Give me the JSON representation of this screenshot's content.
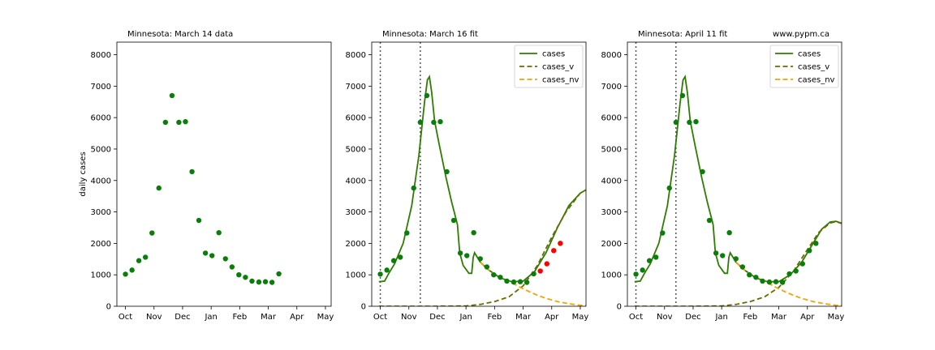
{
  "colors": {
    "cases": "#2e7d00",
    "cases_v": "#6b6b00",
    "cases_nv": "#f5a300",
    "data_point": "#0a7d0a",
    "new_point": "#ff0000",
    "vline": "#555555"
  },
  "chart_data": [
    {
      "type": "scatter",
      "title": "Minnesota:  March 14 data",
      "title_right": "",
      "ylabel": "daily cases",
      "ylim": [
        0,
        8400
      ],
      "xlim": [
        -0.3,
        7.2
      ],
      "yticks": [
        0,
        1000,
        2000,
        3000,
        4000,
        5000,
        6000,
        7000,
        8000
      ],
      "xtick_labels": [
        "Oct",
        "Nov",
        "Dec",
        "Jan",
        "Feb",
        "Mar",
        "Apr",
        "May"
      ],
      "vlines": [],
      "legend": [],
      "series": [],
      "points": {
        "x": [
          0.0,
          0.23,
          0.47,
          0.7,
          0.93,
          1.17,
          1.4,
          1.63,
          1.87,
          2.1,
          2.33,
          2.57,
          2.8,
          3.03,
          3.27,
          3.5,
          3.73,
          3.97,
          4.2,
          4.43,
          4.67,
          4.9,
          5.13,
          5.37
        ],
        "y": [
          1020,
          1150,
          1450,
          1560,
          2330,
          3760,
          5850,
          6700,
          5850,
          5870,
          4280,
          2730,
          1690,
          1610,
          2340,
          1510,
          1250,
          1000,
          920,
          800,
          770,
          780,
          760,
          1030
        ]
      },
      "new_points": {
        "x": [],
        "y": []
      }
    },
    {
      "type": "line",
      "title": "Minnesota:  March 16 fit",
      "title_right": "",
      "ylabel": "",
      "ylim": [
        0,
        8400
      ],
      "xlim": [
        -0.3,
        7.2
      ],
      "yticks": [
        0,
        1000,
        2000,
        3000,
        4000,
        5000,
        6000,
        7000,
        8000
      ],
      "xtick_labels": [
        "Oct",
        "Nov",
        "Dec",
        "Jan",
        "Feb",
        "Mar",
        "Apr",
        "May"
      ],
      "vlines": [
        0.0,
        1.4
      ],
      "legend": [
        "cases",
        "cases_v",
        "cases_nv"
      ],
      "series": [
        {
          "name": "cases",
          "style": "solid",
          "x": [
            -0.05,
            0.15,
            0.3,
            0.5,
            0.8,
            1.1,
            1.35,
            1.55,
            1.65,
            1.72,
            1.8,
            1.9,
            2.05,
            2.3,
            2.5,
            2.7,
            2.78,
            2.9,
            3.1,
            3.2,
            3.25,
            3.3,
            3.5,
            3.8,
            4.2,
            4.6,
            5.0,
            5.4,
            5.8,
            6.2,
            6.6,
            7.0,
            7.2
          ],
          "y": [
            780,
            800,
            1050,
            1350,
            2000,
            3200,
            4800,
            6500,
            7200,
            7300,
            6800,
            5900,
            5200,
            4100,
            3300,
            2600,
            1700,
            1300,
            1050,
            1050,
            1550,
            1700,
            1400,
            1150,
            900,
            780,
            800,
            1100,
            1700,
            2500,
            3200,
            3600,
            3700
          ]
        },
        {
          "name": "cases_v",
          "style": "dashed",
          "x": [
            -0.05,
            1.0,
            2.0,
            3.0,
            3.5,
            4.0,
            4.5,
            5.0,
            5.5,
            6.0,
            6.5,
            7.0,
            7.2
          ],
          "y": [
            0,
            0,
            0,
            10,
            60,
            150,
            300,
            650,
            1300,
            2200,
            3000,
            3600,
            3700
          ]
        },
        {
          "name": "cases_nv",
          "style": "dashed",
          "x": [
            3.5,
            3.8,
            4.0,
            4.3,
            4.6,
            4.9,
            5.2,
            5.5,
            5.8,
            6.2,
            6.6,
            7.0,
            7.2
          ],
          "y": [
            1400,
            1150,
            1000,
            880,
            750,
            600,
            470,
            350,
            250,
            150,
            80,
            30,
            20
          ]
        }
      ],
      "points": {
        "x": [
          0.0,
          0.23,
          0.47,
          0.7,
          0.93,
          1.17,
          1.4,
          1.63,
          1.87,
          2.1,
          2.33,
          2.57,
          2.8,
          3.03,
          3.27,
          3.5,
          3.73,
          3.97,
          4.2,
          4.43,
          4.67,
          4.9,
          5.13,
          5.37
        ],
        "y": [
          1020,
          1150,
          1450,
          1560,
          2330,
          3760,
          5850,
          6700,
          5850,
          5870,
          4280,
          2730,
          1690,
          1610,
          2340,
          1510,
          1250,
          1000,
          920,
          800,
          770,
          780,
          760,
          1030
        ]
      },
      "new_points": {
        "x": [
          5.6,
          5.83,
          6.07,
          6.3
        ],
        "y": [
          1120,
          1350,
          1770,
          2000
        ]
      }
    },
    {
      "type": "line",
      "title": "Minnesota:  April 11 fit",
      "title_right": "www.pypm.ca",
      "ylabel": "",
      "ylim": [
        0,
        8400
      ],
      "xlim": [
        -0.3,
        7.2
      ],
      "yticks": [
        0,
        1000,
        2000,
        3000,
        4000,
        5000,
        6000,
        7000,
        8000
      ],
      "xtick_labels": [
        "Oct",
        "Nov",
        "Dec",
        "Jan",
        "Feb",
        "Mar",
        "Apr",
        "May"
      ],
      "vlines": [
        0.0,
        1.4
      ],
      "legend": [
        "cases",
        "cases_v",
        "cases_nv"
      ],
      "series": [
        {
          "name": "cases",
          "style": "solid",
          "x": [
            -0.05,
            0.15,
            0.3,
            0.5,
            0.8,
            1.1,
            1.35,
            1.55,
            1.65,
            1.72,
            1.8,
            1.9,
            2.05,
            2.3,
            2.5,
            2.7,
            2.78,
            2.9,
            3.1,
            3.2,
            3.25,
            3.3,
            3.5,
            3.8,
            4.2,
            4.6,
            5.0,
            5.4,
            5.8,
            6.2,
            6.5,
            6.8,
            7.0,
            7.2
          ],
          "y": [
            780,
            800,
            1050,
            1350,
            2000,
            3200,
            4800,
            6500,
            7200,
            7300,
            6800,
            5900,
            5200,
            4100,
            3300,
            2600,
            1700,
            1300,
            1050,
            1050,
            1550,
            1700,
            1400,
            1150,
            900,
            780,
            780,
            1000,
            1400,
            2000,
            2450,
            2680,
            2700,
            2640
          ]
        },
        {
          "name": "cases_v",
          "style": "dashed",
          "x": [
            -0.05,
            1.0,
            2.0,
            3.0,
            3.5,
            4.0,
            4.5,
            5.0,
            5.5,
            6.0,
            6.4,
            6.8,
            7.0,
            7.2
          ],
          "y": [
            0,
            0,
            0,
            10,
            60,
            150,
            300,
            600,
            1100,
            1800,
            2350,
            2650,
            2690,
            2630
          ]
        },
        {
          "name": "cases_nv",
          "style": "dashed",
          "x": [
            3.5,
            3.8,
            4.0,
            4.3,
            4.6,
            4.9,
            5.2,
            5.5,
            5.8,
            6.2,
            6.6,
            7.0,
            7.2
          ],
          "y": [
            1400,
            1150,
            1000,
            880,
            750,
            600,
            470,
            350,
            250,
            150,
            80,
            30,
            20
          ]
        }
      ],
      "points": {
        "x": [
          0.0,
          0.23,
          0.47,
          0.7,
          0.93,
          1.17,
          1.4,
          1.63,
          1.87,
          2.1,
          2.33,
          2.57,
          2.8,
          3.03,
          3.27,
          3.5,
          3.73,
          3.97,
          4.2,
          4.43,
          4.67,
          4.9,
          5.13,
          5.37,
          5.6,
          5.83,
          6.07,
          6.3
        ],
        "y": [
          1020,
          1150,
          1450,
          1560,
          2330,
          3760,
          5850,
          6700,
          5850,
          5870,
          4280,
          2730,
          1690,
          1610,
          2340,
          1510,
          1250,
          1000,
          920,
          800,
          770,
          780,
          760,
          1030,
          1120,
          1350,
          1770,
          2000
        ]
      },
      "new_points": {
        "x": [],
        "y": []
      }
    }
  ]
}
